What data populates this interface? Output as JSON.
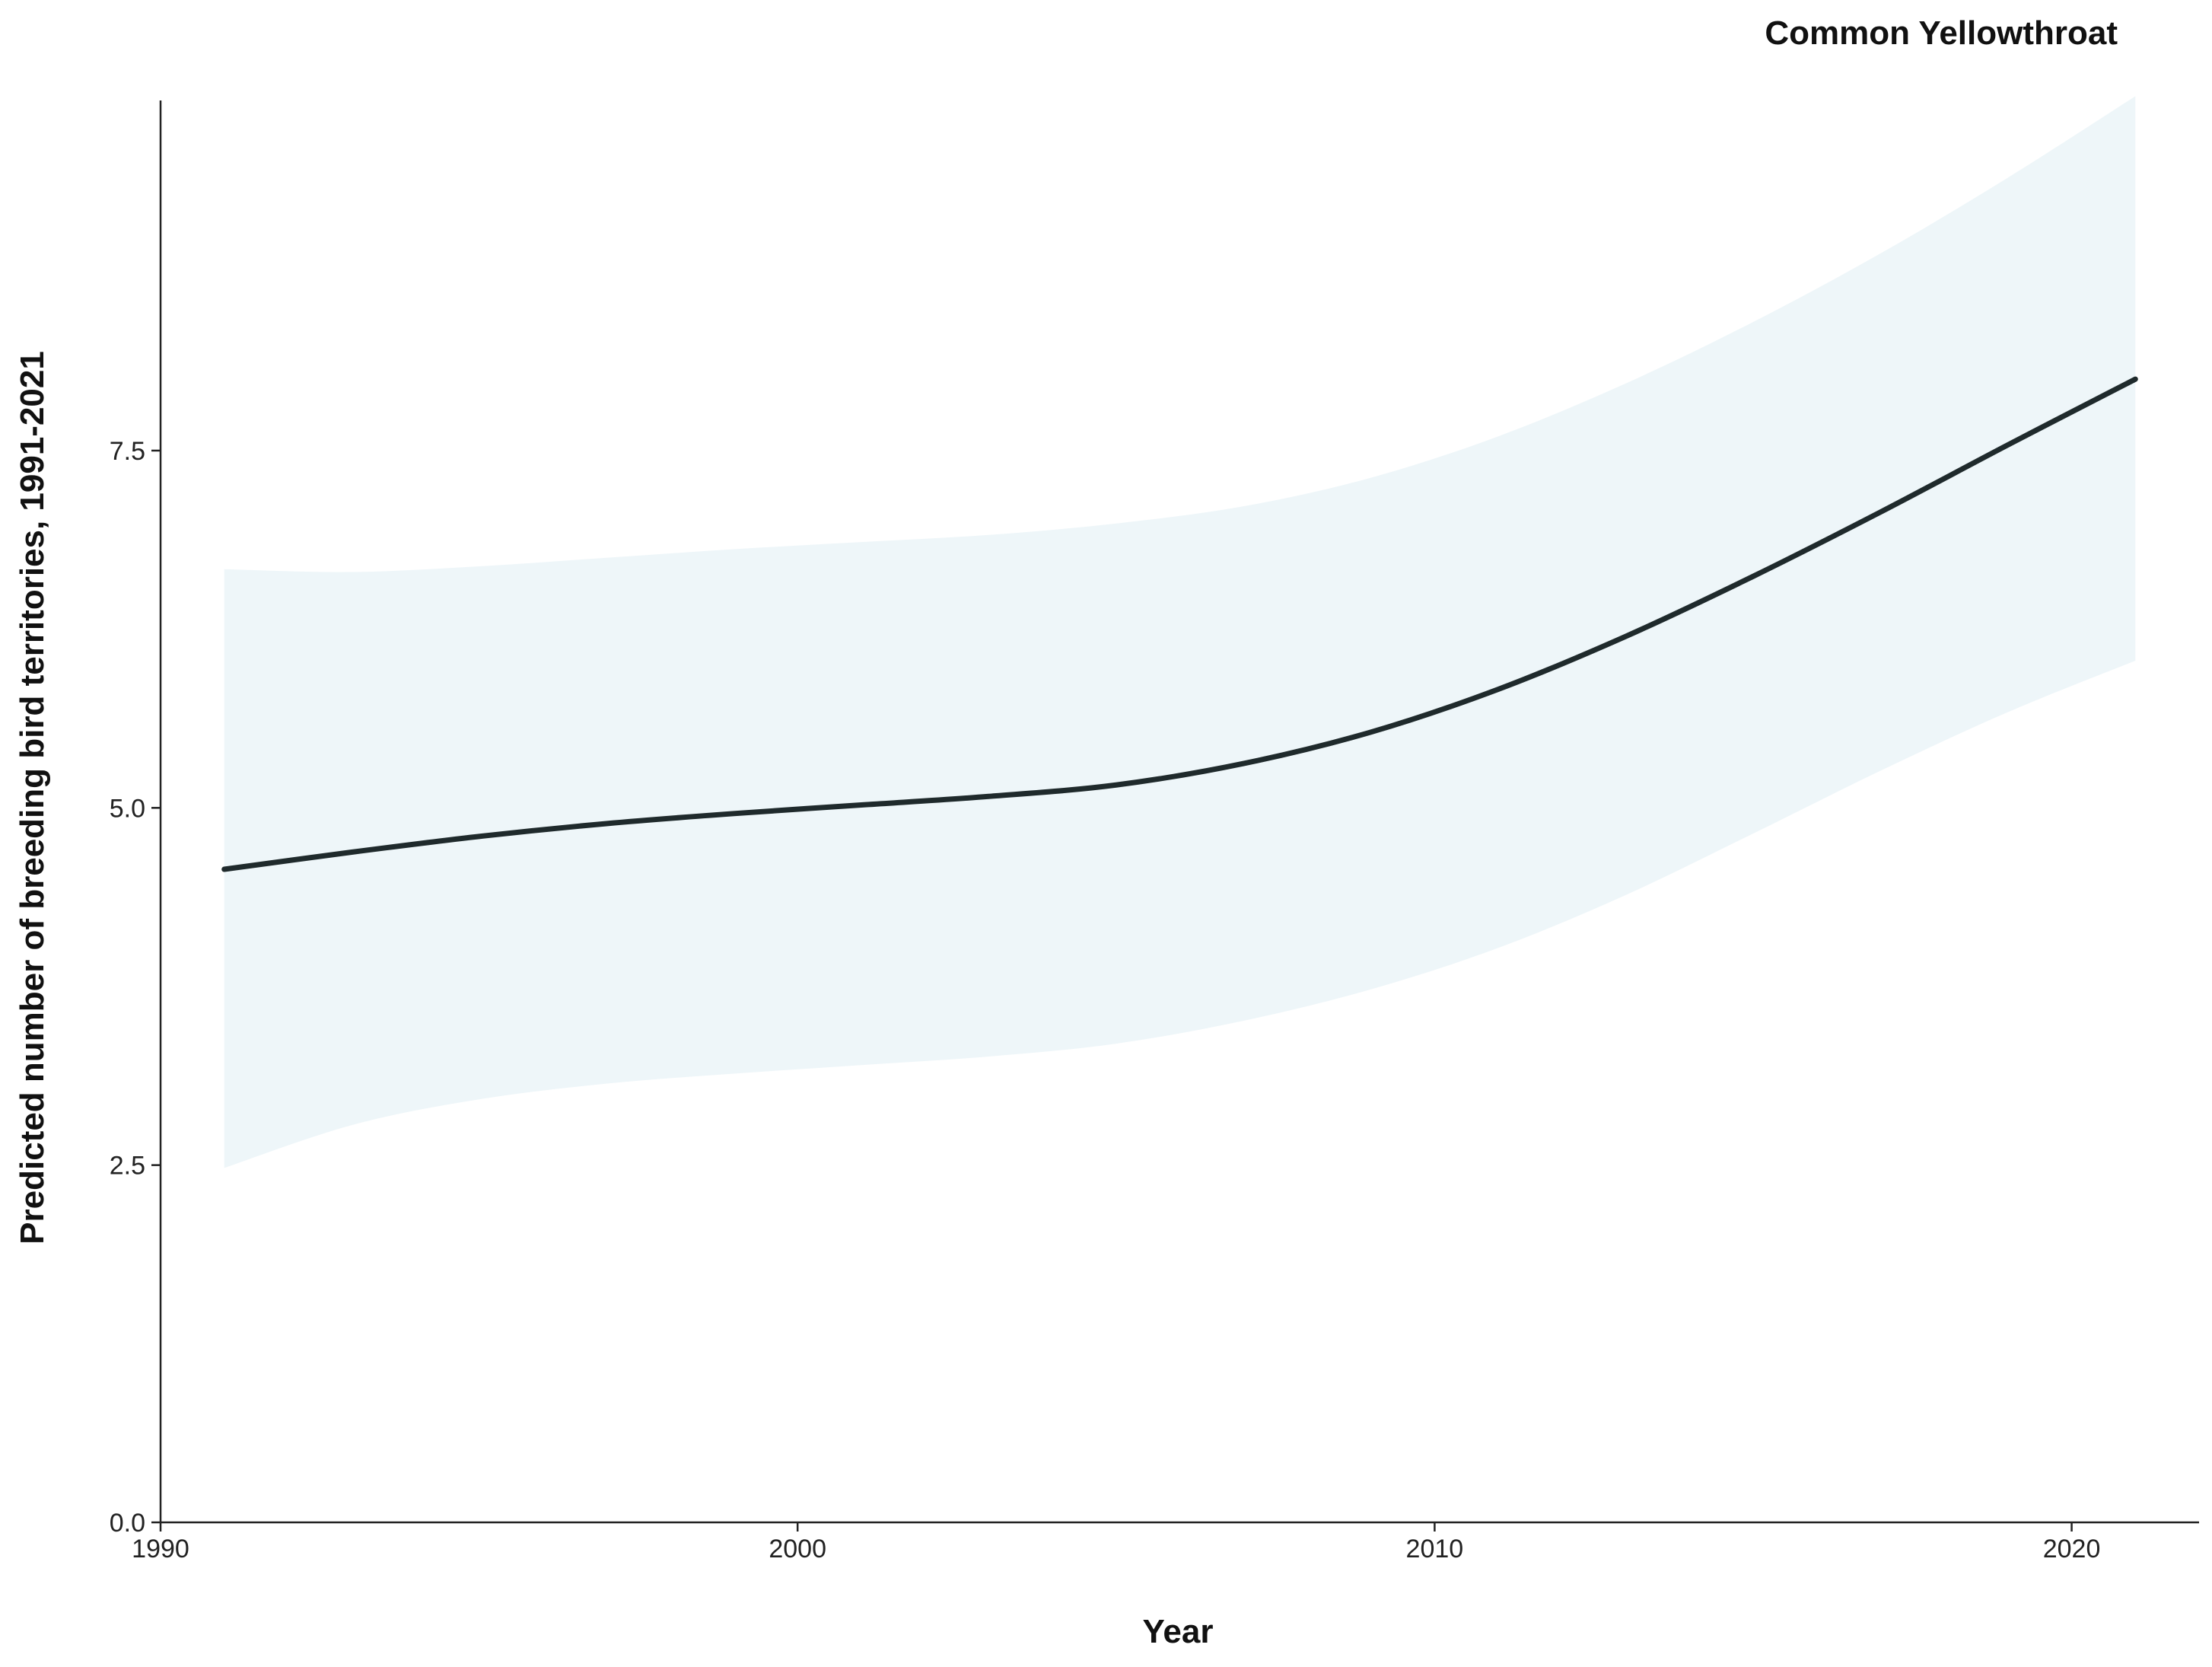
{
  "chart_data": {
    "type": "line",
    "title": "Common Yellowthroat",
    "xlabel": "Year",
    "ylabel": "Predicted number of breeding bird territories, 1991-2021",
    "xlim": [
      1990,
      2022
    ],
    "ylim": [
      0,
      9.95
    ],
    "x_ticks": [
      1990,
      2000,
      2010,
      2020
    ],
    "y_ticks": [
      0,
      2.5,
      5,
      7.5
    ],
    "y_tick_labels": [
      "0.0",
      "2.5",
      "5.0",
      "7.5"
    ],
    "grid": false,
    "legend": "none",
    "line_color": "#1f2a2c",
    "band_color": "#eef6f9",
    "series": [
      {
        "x": [
          1991,
          1993,
          1995,
          1997,
          1999,
          2001,
          2003,
          2005,
          2007,
          2009,
          2011,
          2013,
          2015,
          2017,
          2019,
          2021
        ],
        "y": [
          4.57,
          4.69,
          4.8,
          4.89,
          4.96,
          5.02,
          5.08,
          5.16,
          5.31,
          5.53,
          5.83,
          6.2,
          6.62,
          7.07,
          7.54,
          8.0
        ],
        "lower": [
          2.48,
          2.78,
          2.96,
          3.07,
          3.14,
          3.2,
          3.26,
          3.35,
          3.51,
          3.73,
          4.02,
          4.39,
          4.82,
          5.26,
          5.67,
          6.03
        ],
        "upper": [
          6.67,
          6.65,
          6.69,
          6.75,
          6.81,
          6.86,
          6.91,
          6.99,
          7.11,
          7.31,
          7.6,
          7.97,
          8.4,
          8.88,
          9.41,
          9.98
        ]
      }
    ]
  }
}
